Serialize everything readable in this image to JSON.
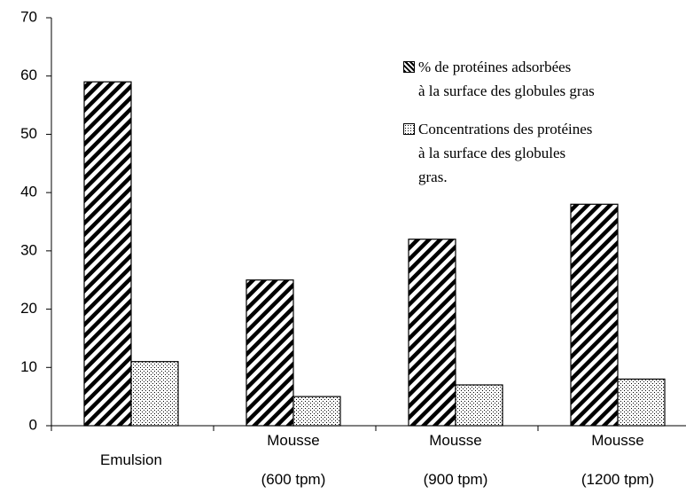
{
  "chart_data": {
    "type": "bar",
    "categories": [
      "Emulsion",
      "Mousse\n(600 tpm)",
      "Mousse\n(900 tpm)",
      "Mousse\n(1200 tpm)"
    ],
    "series": [
      {
        "name": "% de protéines adsorbées\nà la surface des globules gras",
        "color": "#000000",
        "pattern": "hatch",
        "values": [
          59,
          25,
          32,
          38
        ]
      },
      {
        "name": "Concentrations des protéines\nà la surface des globules\ngras.",
        "color": "#000000",
        "pattern": "dots",
        "values": [
          11,
          5,
          7,
          8
        ]
      }
    ],
    "ylim": [
      0,
      70
    ],
    "yticks": [
      0,
      10,
      20,
      30,
      40,
      50,
      60,
      70
    ],
    "legend": "upper right"
  }
}
